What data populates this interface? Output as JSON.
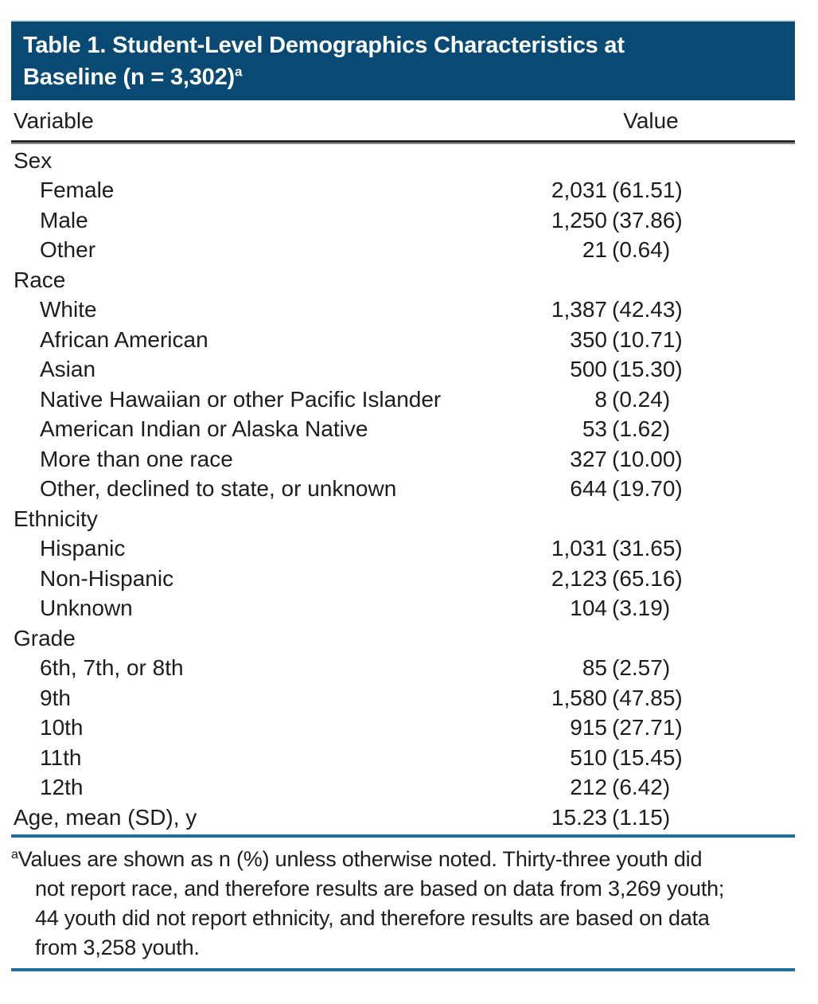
{
  "colors": {
    "band": "#084a73",
    "rule_blue": "#1e6e9e",
    "text": "#1d1d1d"
  },
  "table": {
    "title_line1": "Table 1. Student-Level Demographics Characteristics at",
    "title_line2": "Baseline (n = 3,302)",
    "title_superscript": "a",
    "columns": {
      "variable": "Variable",
      "value": "Value"
    },
    "rows": [
      {
        "type": "category",
        "label": "Sex",
        "count": "",
        "pct": ""
      },
      {
        "type": "item",
        "label": "Female",
        "count": "2,031",
        "pct": "(61.51)"
      },
      {
        "type": "item",
        "label": "Male",
        "count": "1,250",
        "pct": "(37.86)"
      },
      {
        "type": "item",
        "label": "Other",
        "count": "21",
        "pct": "(0.64)"
      },
      {
        "type": "category",
        "label": "Race",
        "count": "",
        "pct": ""
      },
      {
        "type": "item",
        "label": "White",
        "count": "1,387",
        "pct": "(42.43)"
      },
      {
        "type": "item",
        "label": "African American",
        "count": "350",
        "pct": "(10.71)"
      },
      {
        "type": "item",
        "label": "Asian",
        "count": "500",
        "pct": "(15.30)"
      },
      {
        "type": "item",
        "label": "Native Hawaiian or other Pacific Islander",
        "count": "8",
        "pct": "(0.24)"
      },
      {
        "type": "item",
        "label": "American Indian or Alaska Native",
        "count": "53",
        "pct": "(1.62)"
      },
      {
        "type": "item",
        "label": "More than one race",
        "count": "327",
        "pct": "(10.00)"
      },
      {
        "type": "item",
        "label": "Other, declined to state, or unknown",
        "count": "644",
        "pct": "(19.70)"
      },
      {
        "type": "category",
        "label": "Ethnicity",
        "count": "",
        "pct": ""
      },
      {
        "type": "item",
        "label": "Hispanic",
        "count": "1,031",
        "pct": "(31.65)"
      },
      {
        "type": "item",
        "label": "Non-Hispanic",
        "count": "2,123",
        "pct": "(65.16)"
      },
      {
        "type": "item",
        "label": "Unknown",
        "count": "104",
        "pct": "(3.19)"
      },
      {
        "type": "category",
        "label": "Grade",
        "count": "",
        "pct": ""
      },
      {
        "type": "item",
        "label": "6th, 7th, or 8th",
        "count": "85",
        "pct": "(2.57)"
      },
      {
        "type": "item",
        "label": "9th",
        "count": "1,580",
        "pct": "(47.85)"
      },
      {
        "type": "item",
        "label": "10th",
        "count": "915",
        "pct": "(27.71)"
      },
      {
        "type": "item",
        "label": "11th",
        "count": "510",
        "pct": "(15.45)"
      },
      {
        "type": "item",
        "label": "12th",
        "count": "212",
        "pct": "(6.42)"
      },
      {
        "type": "summary",
        "label": "Age, mean (SD), y",
        "count": "15.23",
        "pct": "(1.15)"
      }
    ],
    "footnote": {
      "marker": "a",
      "lines": [
        "Values are shown as n (%) unless otherwise noted. Thirty-three youth did",
        "not report race, and therefore results are based on data from 3,269 youth;",
        "44 youth did not report ethnicity, and therefore results are based on data",
        "from 3,258 youth."
      ],
      "full_text": "Values are shown as n (%) unless otherwise noted. Thirty-three youth did not report race, and therefore results are based on data from 3,269 youth; 44 youth did not report ethnicity, and therefore results are based on data from 3,258 youth."
    }
  }
}
